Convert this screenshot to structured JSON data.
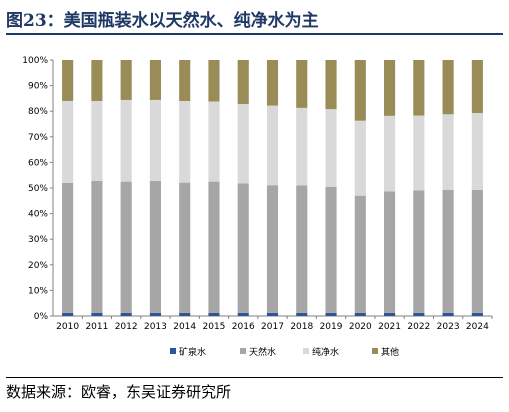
{
  "figure": {
    "title": "图23：美国瓶装水以天然水、纯净水为主",
    "source": "数据来源：欧睿，东吴证券研究所"
  },
  "chart_data": {
    "type": "bar",
    "stacked": true,
    "categories": [
      "2010",
      "2011",
      "2012",
      "2013",
      "2014",
      "2015",
      "2016",
      "2017",
      "2018",
      "2019",
      "2020",
      "2021",
      "2022",
      "2023",
      "2024"
    ],
    "series": [
      {
        "name": "矿泉水",
        "color": "#2e5597",
        "values": [
          1.2,
          1.2,
          1.2,
          1.2,
          1.2,
          1.2,
          1.2,
          1.2,
          1.2,
          1.2,
          1.2,
          1.2,
          1.2,
          1.2,
          1.2
        ]
      },
      {
        "name": "天然水",
        "color": "#a6a6a6",
        "values": [
          50.8,
          51.6,
          51.3,
          51.6,
          50.9,
          51.3,
          50.6,
          49.9,
          49.8,
          49.3,
          45.8,
          47.5,
          47.9,
          48.1,
          48.1
        ]
      },
      {
        "name": "纯净水",
        "color": "#d9d9d9",
        "values": [
          32.0,
          31.2,
          31.9,
          31.6,
          31.9,
          31.3,
          31.0,
          31.1,
          30.3,
          30.3,
          29.3,
          29.5,
          29.2,
          29.5,
          30.0
        ]
      },
      {
        "name": "其他",
        "color": "#998c56",
        "values": [
          16.0,
          16.0,
          15.6,
          15.6,
          16.0,
          16.2,
          17.2,
          17.8,
          18.7,
          19.2,
          23.7,
          21.8,
          21.7,
          21.2,
          20.7
        ]
      }
    ],
    "ylim": [
      0,
      100
    ],
    "yticks": [
      "0%",
      "10%",
      "20%",
      "30%",
      "40%",
      "50%",
      "60%",
      "70%",
      "80%",
      "90%",
      "100%"
    ],
    "grid": false,
    "legend": "bottom"
  }
}
